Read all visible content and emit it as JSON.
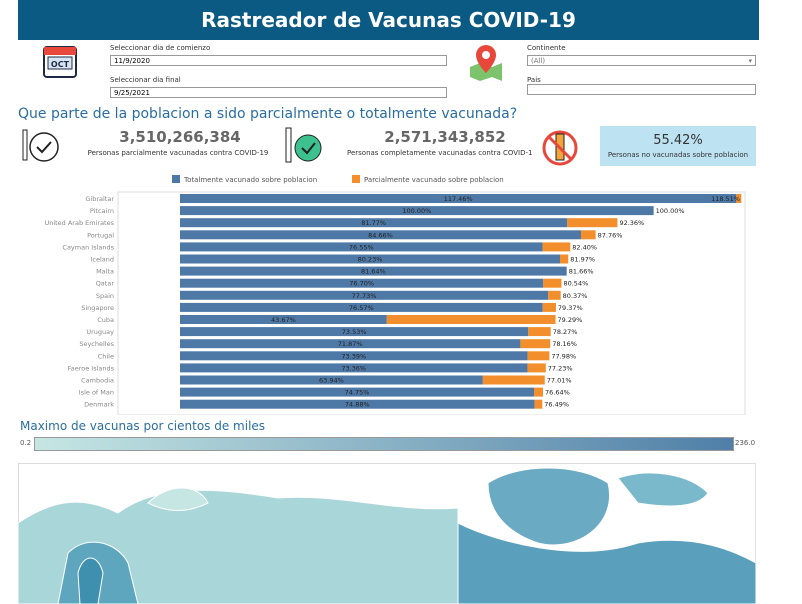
{
  "header": {
    "title": "Rastreador de Vacunas COVID-19"
  },
  "filters": {
    "start_label": "Seleccionar dia de comienzo",
    "start_value": "11/9/2020",
    "end_label": "Seleccionar dia final",
    "end_value": "9/25/2021",
    "continent_label": "Continente",
    "continent_value": "(All)",
    "country_label": "Pais"
  },
  "question": "Que parte de la poblacion a sido parcialmente o totalmente vacunada?",
  "kpis": [
    {
      "value": "3,510,266,384",
      "label": "Personas parcialmente vacunadas contra COVID-19"
    },
    {
      "value": "2,571,343,852",
      "label": "Personas completamente vacunadas contra COVID-19"
    },
    {
      "value": "55.42%",
      "label": "Personas no vacunadas sobre poblacion"
    }
  ],
  "chart_data": {
    "type": "bar",
    "orientation": "horizontal",
    "stacked": true,
    "categories": [
      "Gibraltar",
      "Pitcairn",
      "United Arab Emirates",
      "Portugal",
      "Cayman Islands",
      "Iceland",
      "Malta",
      "Qatar",
      "Spain",
      "Singapore",
      "Cuba",
      "Uruguay",
      "Seychelles",
      "Chile",
      "Faeroe Islands",
      "Cambodia",
      "Isle of Man",
      "Denmark"
    ],
    "series": [
      {
        "name": "Totalmente vacunado sobre poblacion",
        "color": "#4e79a7",
        "values": [
          117.46,
          100.0,
          81.77,
          84.66,
          76.55,
          80.23,
          81.64,
          76.7,
          77.73,
          76.57,
          43.67,
          73.53,
          71.87,
          73.39,
          73.36,
          63.94,
          74.75,
          74.88
        ],
        "value_labels": [
          "117.46%",
          "100.00%",
          "81.77%",
          "84.66%",
          "76.55%",
          "80.23%",
          "81.64%",
          "76.70%",
          "77.73%",
          "76.57%",
          "43.67%",
          "73.53%",
          "71.87%",
          "73.39%",
          "73.36%",
          "63.94%",
          "74.75%",
          "74.88%"
        ]
      },
      {
        "name": "Parcialmente vacunado sobre poblacion",
        "color": "#f28e2b",
        "values": [
          1.05,
          0,
          10.59,
          3.1,
          5.85,
          1.74,
          0.02,
          3.84,
          2.64,
          2.8,
          35.62,
          4.74,
          6.29,
          4.59,
          3.87,
          13.07,
          1.89,
          1.61
        ]
      }
    ],
    "totals": [
      118.51,
      100.0,
      92.36,
      87.76,
      82.4,
      81.97,
      81.66,
      80.54,
      80.37,
      79.37,
      79.29,
      78.27,
      78.16,
      77.98,
      77.23,
      77.01,
      76.64,
      76.49
    ],
    "total_labels": [
      "118.51%",
      "100.00%",
      "92.36%",
      "87.76%",
      "82.40%",
      "81.97%",
      "81.66%",
      "80.54%",
      "80.37%",
      "79.37%",
      "79.29%",
      "78.27%",
      "78.16%",
      "77.98%",
      "77.23%",
      "77.01%",
      "76.64%",
      "76.49%"
    ],
    "xlim": [
      0,
      119.5
    ]
  },
  "map": {
    "title": "Maximo de vacunas por cientos de miles",
    "legend_min": "0.2",
    "legend_max": "236.0"
  }
}
